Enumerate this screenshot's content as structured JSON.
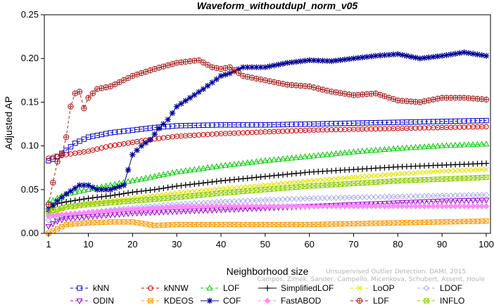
{
  "chart_data": {
    "type": "line",
    "title": "Waveform_withoutdupl_norm_v05",
    "xlabel": "Neighborhood size",
    "ylabel": "Adjusted AP",
    "xlim": [
      1,
      100
    ],
    "ylim": [
      0,
      0.25
    ],
    "x_ticks": [
      1,
      10,
      20,
      30,
      40,
      50,
      60,
      70,
      80,
      90,
      100
    ],
    "y_ticks": [
      0.0,
      0.05,
      0.1,
      0.15,
      0.2,
      0.25
    ],
    "y_tick_labels": [
      "0.00",
      "0.05",
      "0.10",
      "0.15",
      "0.20",
      "0.25"
    ],
    "grid": false,
    "legend_position": "bottom",
    "series": [
      {
        "name": "kNN",
        "color": "#0000cc",
        "marker": "square",
        "dash": "4,3",
        "points": [
          [
            1,
            0.083
          ],
          [
            2,
            0.085
          ],
          [
            3,
            0.088
          ],
          [
            5,
            0.095
          ],
          [
            7,
            0.103
          ],
          [
            10,
            0.11
          ],
          [
            15,
            0.115
          ],
          [
            20,
            0.118
          ],
          [
            25,
            0.121
          ],
          [
            30,
            0.123
          ],
          [
            40,
            0.124
          ],
          [
            50,
            0.124
          ],
          [
            60,
            0.125
          ],
          [
            70,
            0.126
          ],
          [
            80,
            0.127
          ],
          [
            90,
            0.128
          ],
          [
            100,
            0.129
          ]
        ]
      },
      {
        "name": "kNNW",
        "color": "#cc0000",
        "marker": "circle",
        "dash": "4,3",
        "points": [
          [
            1,
            0.086
          ],
          [
            3,
            0.088
          ],
          [
            5,
            0.09
          ],
          [
            10,
            0.094
          ],
          [
            15,
            0.1
          ],
          [
            20,
            0.104
          ],
          [
            25,
            0.108
          ],
          [
            30,
            0.111
          ],
          [
            40,
            0.114
          ],
          [
            50,
            0.116
          ],
          [
            60,
            0.118
          ],
          [
            70,
            0.119
          ],
          [
            80,
            0.12
          ],
          [
            90,
            0.121
          ],
          [
            100,
            0.122
          ]
        ]
      },
      {
        "name": "LOF",
        "color": "#00cc00",
        "marker": "triangle-up",
        "dash": "4,3",
        "points": [
          [
            1,
            0.035
          ],
          [
            3,
            0.04
          ],
          [
            5,
            0.045
          ],
          [
            10,
            0.05
          ],
          [
            15,
            0.055
          ],
          [
            20,
            0.06
          ],
          [
            25,
            0.065
          ],
          [
            30,
            0.07
          ],
          [
            40,
            0.077
          ],
          [
            50,
            0.083
          ],
          [
            60,
            0.088
          ],
          [
            70,
            0.093
          ],
          [
            80,
            0.097
          ],
          [
            90,
            0.1
          ],
          [
            100,
            0.102
          ]
        ]
      },
      {
        "name": "SimplifiedLOF",
        "color": "#000000",
        "marker": "plus",
        "dash": "",
        "points": [
          [
            1,
            0.025
          ],
          [
            2,
            0.03
          ],
          [
            3,
            0.034
          ],
          [
            5,
            0.036
          ],
          [
            10,
            0.04
          ],
          [
            15,
            0.043
          ],
          [
            20,
            0.047
          ],
          [
            25,
            0.05
          ],
          [
            30,
            0.054
          ],
          [
            40,
            0.06
          ],
          [
            50,
            0.065
          ],
          [
            60,
            0.07
          ],
          [
            70,
            0.073
          ],
          [
            80,
            0.076
          ],
          [
            90,
            0.078
          ],
          [
            100,
            0.08
          ]
        ]
      },
      {
        "name": "LoOP",
        "color": "#e5e500",
        "marker": "x",
        "dash": "4,3",
        "points": [
          [
            1,
            0.02
          ],
          [
            3,
            0.025
          ],
          [
            5,
            0.03
          ],
          [
            10,
            0.034
          ],
          [
            15,
            0.037
          ],
          [
            20,
            0.04
          ],
          [
            25,
            0.043
          ],
          [
            30,
            0.046
          ],
          [
            40,
            0.051
          ],
          [
            50,
            0.055
          ],
          [
            60,
            0.06
          ],
          [
            70,
            0.064
          ],
          [
            80,
            0.068
          ],
          [
            90,
            0.071
          ],
          [
            100,
            0.073
          ]
        ]
      },
      {
        "name": "LDOF",
        "color": "#aaaaee",
        "marker": "diamond",
        "dash": "4,3",
        "points": [
          [
            1,
            0.015
          ],
          [
            5,
            0.02
          ],
          [
            10,
            0.024
          ],
          [
            20,
            0.029
          ],
          [
            30,
            0.033
          ],
          [
            40,
            0.036
          ],
          [
            50,
            0.038
          ],
          [
            60,
            0.04
          ],
          [
            70,
            0.041
          ],
          [
            80,
            0.042
          ],
          [
            90,
            0.043
          ],
          [
            100,
            0.044
          ]
        ]
      },
      {
        "name": "ODIN",
        "color": "#9900cc",
        "marker": "triangle-down",
        "dash": "4,3",
        "points": [
          [
            1,
            0.008
          ],
          [
            3,
            0.014
          ],
          [
            5,
            0.017
          ],
          [
            10,
            0.019
          ],
          [
            15,
            0.021
          ],
          [
            20,
            0.023
          ],
          [
            25,
            0.024
          ],
          [
            30,
            0.025
          ],
          [
            40,
            0.027
          ],
          [
            50,
            0.029
          ],
          [
            60,
            0.031
          ],
          [
            70,
            0.033
          ],
          [
            80,
            0.035
          ],
          [
            90,
            0.037
          ],
          [
            100,
            0.038
          ]
        ]
      },
      {
        "name": "KDEOS",
        "color": "#ff9900",
        "marker": "square-x",
        "dash": "4,3",
        "points": [
          [
            1,
            0.0
          ],
          [
            3,
            0.005
          ],
          [
            5,
            0.01
          ],
          [
            10,
            0.012
          ],
          [
            15,
            0.013
          ],
          [
            20,
            0.013
          ],
          [
            25,
            0.009
          ],
          [
            30,
            0.01
          ],
          [
            40,
            0.01
          ],
          [
            50,
            0.01
          ],
          [
            60,
            0.01
          ],
          [
            70,
            0.011
          ],
          [
            80,
            0.012
          ],
          [
            90,
            0.013
          ],
          [
            100,
            0.014
          ]
        ]
      },
      {
        "name": "COF",
        "color": "#000099",
        "marker": "asterisk",
        "dash": "",
        "points": [
          [
            1,
            0.028
          ],
          [
            3,
            0.037
          ],
          [
            5,
            0.045
          ],
          [
            8,
            0.055
          ],
          [
            10,
            0.055
          ],
          [
            12,
            0.05
          ],
          [
            15,
            0.05
          ],
          [
            18,
            0.055
          ],
          [
            20,
            0.09
          ],
          [
            22,
            0.1
          ],
          [
            24,
            0.107
          ],
          [
            26,
            0.12
          ],
          [
            28,
            0.13
          ],
          [
            30,
            0.145
          ],
          [
            33,
            0.155
          ],
          [
            36,
            0.165
          ],
          [
            40,
            0.18
          ],
          [
            42,
            0.183
          ],
          [
            45,
            0.19
          ],
          [
            50,
            0.19
          ],
          [
            55,
            0.195
          ],
          [
            60,
            0.198
          ],
          [
            65,
            0.197
          ],
          [
            70,
            0.2
          ],
          [
            75,
            0.203
          ],
          [
            80,
            0.205
          ],
          [
            85,
            0.2
          ],
          [
            90,
            0.203
          ],
          [
            95,
            0.207
          ],
          [
            100,
            0.203
          ]
        ]
      },
      {
        "name": "FastABOD",
        "color": "#ff88ff",
        "marker": "diamond-filled",
        "dash": "4,3",
        "points": [
          [
            1,
            0.02
          ],
          [
            5,
            0.022
          ],
          [
            10,
            0.024
          ],
          [
            20,
            0.027
          ],
          [
            30,
            0.03
          ],
          [
            40,
            0.031
          ],
          [
            50,
            0.031
          ],
          [
            60,
            0.031
          ],
          [
            70,
            0.031
          ],
          [
            80,
            0.031
          ],
          [
            90,
            0.031
          ],
          [
            100,
            0.031
          ]
        ]
      },
      {
        "name": "LDF",
        "color": "#aa2222",
        "marker": "circle-plus",
        "dash": "4,3",
        "points": [
          [
            1,
            0.033
          ],
          [
            2,
            0.058
          ],
          [
            3,
            0.082
          ],
          [
            4,
            0.09
          ],
          [
            5,
            0.11
          ],
          [
            6,
            0.145
          ],
          [
            7,
            0.16
          ],
          [
            8,
            0.162
          ],
          [
            9,
            0.143
          ],
          [
            10,
            0.155
          ],
          [
            12,
            0.165
          ],
          [
            15,
            0.168
          ],
          [
            20,
            0.18
          ],
          [
            25,
            0.188
          ],
          [
            30,
            0.195
          ],
          [
            35,
            0.198
          ],
          [
            38,
            0.19
          ],
          [
            40,
            0.188
          ],
          [
            42,
            0.19
          ],
          [
            45,
            0.18
          ],
          [
            50,
            0.175
          ],
          [
            55,
            0.17
          ],
          [
            60,
            0.168
          ],
          [
            65,
            0.162
          ],
          [
            70,
            0.158
          ],
          [
            75,
            0.16
          ],
          [
            80,
            0.152
          ],
          [
            85,
            0.15
          ],
          [
            90,
            0.155
          ],
          [
            95,
            0.155
          ],
          [
            100,
            0.153
          ]
        ]
      },
      {
        "name": "INFLO",
        "color": "#88cc00",
        "marker": "square-x",
        "dash": "4,3",
        "points": [
          [
            1,
            0.025
          ],
          [
            5,
            0.03
          ],
          [
            10,
            0.033
          ],
          [
            20,
            0.037
          ],
          [
            30,
            0.041
          ],
          [
            40,
            0.046
          ],
          [
            50,
            0.05
          ],
          [
            60,
            0.054
          ],
          [
            70,
            0.057
          ],
          [
            80,
            0.06
          ],
          [
            90,
            0.062
          ],
          [
            100,
            0.064
          ]
        ]
      }
    ],
    "annotation": "Campos, Zimek, Sander, Campello, Micenkova, Schubert, Assent, Houle",
    "annotation2": "Unsupervised Outlier Detection. DAMI, 2015."
  }
}
